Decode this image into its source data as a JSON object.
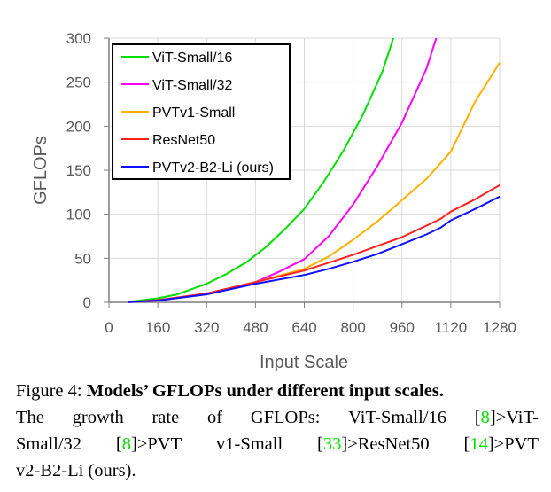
{
  "chart_data": {
    "type": "line",
    "title": "",
    "xlabel": "Input Scale",
    "ylabel": "GFLOPs",
    "xlim": [
      0,
      1280
    ],
    "ylim": [
      0,
      300
    ],
    "xticks": [
      0,
      160,
      320,
      480,
      640,
      800,
      960,
      1120,
      1280
    ],
    "yticks": [
      0,
      50,
      100,
      150,
      200,
      250,
      300
    ],
    "grid": true,
    "legend_position": "top-left",
    "series": [
      {
        "name": "ViT-Small/16",
        "color": "#00e000",
        "x": [
          64,
          160,
          224,
          320,
          384,
          448,
          512,
          576,
          640,
          704,
          768,
          832,
          896,
          960
        ],
        "y": [
          0.5,
          4.5,
          9,
          21,
          32,
          45,
          62,
          83,
          106,
          137,
          172,
          213,
          262,
          330
        ]
      },
      {
        "name": "ViT-Small/32",
        "color": "#ff00ff",
        "x": [
          64,
          160,
          320,
          480,
          560,
          640,
          720,
          800,
          880,
          960,
          1040,
          1100
        ],
        "y": [
          0.3,
          2,
          10,
          23,
          35,
          49,
          75,
          111,
          155,
          204,
          265,
          330
        ]
      },
      {
        "name": "PVTv1-Small",
        "color": "#ffb000",
        "x": [
          64,
          160,
          320,
          480,
          640,
          720,
          800,
          880,
          960,
          1040,
          1120,
          1200,
          1280
        ],
        "y": [
          0.3,
          2,
          10,
          23,
          38,
          52,
          71,
          92,
          116,
          140,
          171,
          228,
          272
        ]
      },
      {
        "name": "ResNet50",
        "color": "#ff2020",
        "x": [
          64,
          160,
          320,
          480,
          640,
          720,
          800,
          880,
          960,
          1040,
          1088,
          1120,
          1200,
          1280
        ],
        "y": [
          0.3,
          2.5,
          10,
          23,
          36,
          45,
          54,
          64,
          74,
          87,
          95,
          103,
          117,
          133
        ]
      },
      {
        "name": "PVTv2-B2-Li (ours)",
        "color": "#1010ff",
        "x": [
          64,
          160,
          320,
          480,
          640,
          720,
          800,
          880,
          960,
          1040,
          1088,
          1120,
          1200,
          1280
        ],
        "y": [
          0.3,
          2,
          9,
          21,
          31,
          38,
          46,
          55,
          66,
          77,
          85,
          93,
          106,
          120
        ]
      }
    ]
  },
  "caption": {
    "line1_prefix": "Figure 4: ",
    "line1_bold": "Models’ GFLOPs under different input scales.",
    "line2": [
      "The",
      "growth",
      "rate",
      "of",
      "GFLOPs:",
      "ViT-Small/16"
    ],
    "cite_8": "8",
    "cite_33": "33",
    "cite_14": "14",
    "t_vit": "]>ViT-",
    "t_small32": "Small/32",
    "t_pvt1": "]>PVT",
    "t_v1small": "v1-Small",
    "t_resnet": "]>ResNet50",
    "t_pvt2": "]>PVT",
    "line4": "v2-B2-Li (ours).",
    "lb": "["
  }
}
